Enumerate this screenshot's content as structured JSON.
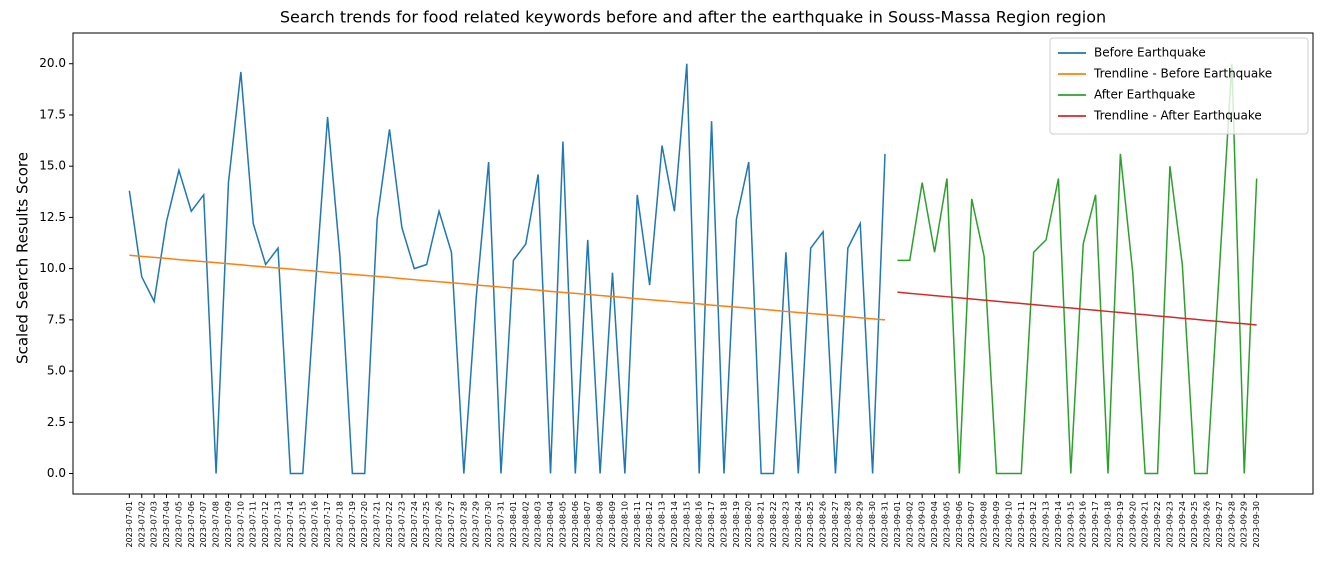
{
  "chart_data": {
    "type": "line",
    "title": "Search trends for food related keywords before and after the earthquake in Souss-Massa Region region",
    "y_label": "Scaled Search Results Score",
    "categories": [
      "2023-07-01",
      "2023-07-02",
      "2023-07-03",
      "2023-07-04",
      "2023-07-05",
      "2023-07-06",
      "2023-07-07",
      "2023-07-08",
      "2023-07-09",
      "2023-07-10",
      "2023-07-11",
      "2023-07-12",
      "2023-07-13",
      "2023-07-14",
      "2023-07-15",
      "2023-07-16",
      "2023-07-17",
      "2023-07-18",
      "2023-07-19",
      "2023-07-20",
      "2023-07-21",
      "2023-07-22",
      "2023-07-23",
      "2023-07-24",
      "2023-07-25",
      "2023-07-26",
      "2023-07-27",
      "2023-07-28",
      "2023-07-29",
      "2023-07-30",
      "2023-07-31",
      "2023-08-01",
      "2023-08-02",
      "2023-08-03",
      "2023-08-04",
      "2023-08-05",
      "2023-08-06",
      "2023-08-07",
      "2023-08-08",
      "2023-08-09",
      "2023-08-10",
      "2023-08-11",
      "2023-08-12",
      "2023-08-13",
      "2023-08-14",
      "2023-08-15",
      "2023-08-16",
      "2023-08-17",
      "2023-08-18",
      "2023-08-19",
      "2023-08-20",
      "2023-08-21",
      "2023-08-22",
      "2023-08-23",
      "2023-08-24",
      "2023-08-25",
      "2023-08-26",
      "2023-08-27",
      "2023-08-28",
      "2023-08-29",
      "2023-08-30",
      "2023-08-31",
      "2023-09-01",
      "2023-09-02",
      "2023-09-03",
      "2023-09-04",
      "2023-09-05",
      "2023-09-06",
      "2023-09-07",
      "2023-09-08",
      "2023-09-09",
      "2023-09-10",
      "2023-09-11",
      "2023-09-12",
      "2023-09-13",
      "2023-09-14",
      "2023-09-15",
      "2023-09-16",
      "2023-09-17",
      "2023-09-18",
      "2023-09-19",
      "2023-09-20",
      "2023-09-21",
      "2023-09-22",
      "2023-09-23",
      "2023-09-24",
      "2023-09-25",
      "2023-09-26",
      "2023-09-27",
      "2023-09-28",
      "2023-09-29",
      "2023-09-30"
    ],
    "series": [
      {
        "name": "Before Earthquake",
        "color": "#1f77b4",
        "values": [
          13.8,
          9.6,
          8.4,
          12.3,
          14.8,
          12.8,
          13.6,
          0,
          14.2,
          19.6,
          12.2,
          10.2,
          11.0,
          0,
          0,
          9.0,
          17.4,
          10.6,
          0,
          0,
          12.4,
          16.8,
          12.0,
          10.0,
          10.2,
          12.8,
          10.8,
          0,
          8.6,
          15.2,
          0,
          10.4,
          11.2,
          14.6,
          0,
          16.2,
          0,
          11.4,
          0,
          9.8,
          0,
          13.6,
          9.2,
          16.0,
          12.8,
          20.0,
          0,
          17.2,
          0,
          12.4,
          15.2,
          0,
          0,
          10.8,
          0,
          11.0,
          11.8,
          0,
          11.0,
          12.2,
          0,
          15.6,
          null,
          null,
          null,
          null,
          null,
          null,
          null,
          null,
          null,
          null,
          null,
          null,
          null,
          null,
          null,
          null,
          null,
          null,
          null,
          null,
          null,
          null,
          null,
          null,
          null,
          null,
          null,
          null,
          null,
          null
        ]
      },
      {
        "name": "Trendline - Before Earthquake",
        "color": "#ff7f0e",
        "values": [
          10.65,
          10.6,
          10.55,
          10.5,
          10.44,
          10.39,
          10.34,
          10.29,
          10.24,
          10.19,
          10.13,
          10.08,
          10.03,
          9.98,
          9.93,
          9.88,
          9.82,
          9.77,
          9.72,
          9.67,
          9.62,
          9.57,
          9.51,
          9.46,
          9.41,
          9.36,
          9.31,
          9.26,
          9.2,
          9.15,
          9.1,
          9.05,
          9.0,
          8.95,
          8.89,
          8.84,
          8.79,
          8.74,
          8.69,
          8.64,
          8.59,
          8.53,
          8.48,
          8.43,
          8.38,
          8.33,
          8.28,
          8.22,
          8.17,
          8.12,
          8.07,
          8.02,
          7.97,
          7.91,
          7.86,
          7.81,
          7.76,
          7.71,
          7.66,
          7.6,
          7.55,
          7.5,
          null,
          null,
          null,
          null,
          null,
          null,
          null,
          null,
          null,
          null,
          null,
          null,
          null,
          null,
          null,
          null,
          null,
          null,
          null,
          null,
          null,
          null,
          null,
          null,
          null,
          null,
          null,
          null,
          null,
          null
        ]
      },
      {
        "name": "After Earthquake",
        "color": "#2ca02c",
        "values": [
          null,
          null,
          null,
          null,
          null,
          null,
          null,
          null,
          null,
          null,
          null,
          null,
          null,
          null,
          null,
          null,
          null,
          null,
          null,
          null,
          null,
          null,
          null,
          null,
          null,
          null,
          null,
          null,
          null,
          null,
          null,
          null,
          null,
          null,
          null,
          null,
          null,
          null,
          null,
          null,
          null,
          null,
          null,
          null,
          null,
          null,
          null,
          null,
          null,
          null,
          null,
          null,
          null,
          null,
          null,
          null,
          null,
          null,
          null,
          null,
          null,
          null,
          10.4,
          10.4,
          14.2,
          10.8,
          14.4,
          0,
          13.4,
          10.6,
          0,
          0,
          0,
          10.8,
          11.4,
          14.4,
          0,
          11.2,
          13.6,
          0,
          15.6,
          9.8,
          0,
          0,
          15.0,
          10.2,
          0,
          0,
          10.0,
          20.0,
          0,
          14.4
        ]
      },
      {
        "name": "Trendline - After Earthquake",
        "color": "#d62728",
        "values": [
          null,
          null,
          null,
          null,
          null,
          null,
          null,
          null,
          null,
          null,
          null,
          null,
          null,
          null,
          null,
          null,
          null,
          null,
          null,
          null,
          null,
          null,
          null,
          null,
          null,
          null,
          null,
          null,
          null,
          null,
          null,
          null,
          null,
          null,
          null,
          null,
          null,
          null,
          null,
          null,
          null,
          null,
          null,
          null,
          null,
          null,
          null,
          null,
          null,
          null,
          null,
          null,
          null,
          null,
          null,
          null,
          null,
          null,
          null,
          null,
          null,
          null,
          8.85,
          8.79,
          8.74,
          8.68,
          8.63,
          8.57,
          8.52,
          8.46,
          8.41,
          8.35,
          8.3,
          8.24,
          8.19,
          8.13,
          8.08,
          8.02,
          7.97,
          7.91,
          7.86,
          7.8,
          7.75,
          7.69,
          7.64,
          7.58,
          7.53,
          7.47,
          7.42,
          7.36,
          7.31,
          7.25
        ]
      }
    ],
    "ylim": [
      -1,
      21.5
    ],
    "yticks": [
      {
        "value": 0,
        "label": "0.0"
      },
      2.5,
      {
        "value": 5,
        "label": "5.0"
      },
      7.5,
      {
        "value": 10,
        "label": "10.0"
      },
      12.5,
      {
        "value": 15,
        "label": "15.0"
      },
      17.5,
      {
        "value": 20,
        "label": "20.0"
      }
    ],
    "legend": "upper right"
  }
}
